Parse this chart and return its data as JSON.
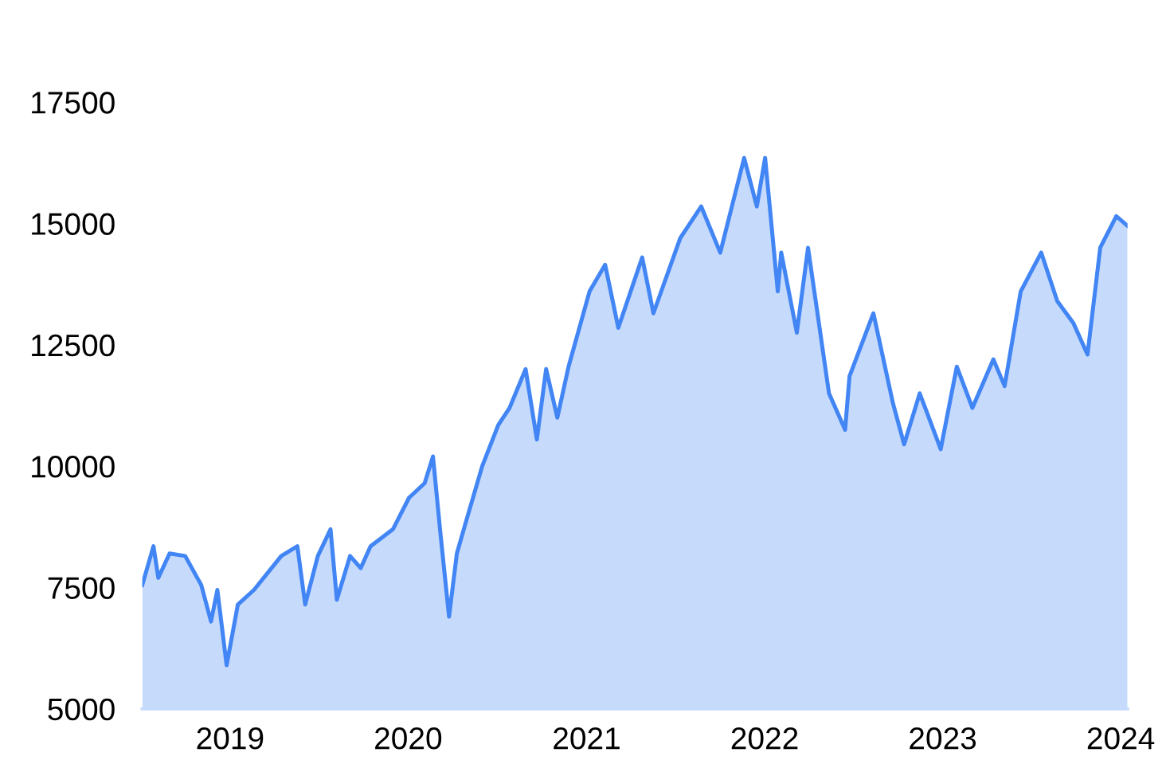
{
  "chart_data": {
    "type": "area",
    "x": [
      "2018-07-05",
      "2018-07-28",
      "2018-08-07",
      "2018-08-30",
      "2018-10-01",
      "2018-11-03",
      "2018-11-23",
      "2018-12-06",
      "2018-12-25",
      "2019-01-17",
      "2019-02-19",
      "2019-04-16",
      "2019-05-19",
      "2019-06-04",
      "2019-06-30",
      "2019-07-26",
      "2019-08-08",
      "2019-09-04",
      "2019-09-26",
      "2019-10-16",
      "2019-12-01",
      "2020-01-03",
      "2020-02-04",
      "2020-02-21",
      "2020-03-08",
      "2020-03-25",
      "2020-04-10",
      "2020-04-30",
      "2020-06-01",
      "2020-07-04",
      "2020-07-27",
      "2020-08-29",
      "2020-09-21",
      "2020-10-10",
      "2020-11-02",
      "2020-11-25",
      "2021-01-07",
      "2021-02-08",
      "2021-03-07",
      "2021-04-25",
      "2021-05-18",
      "2021-07-12",
      "2021-08-24",
      "2021-10-02",
      "2021-11-20",
      "2021-12-16",
      "2022-01-02",
      "2022-01-28",
      "2022-02-04",
      "2022-03-08",
      "2022-03-31",
      "2022-05-13",
      "2022-06-15",
      "2022-06-24",
      "2022-08-12",
      "2022-09-21",
      "2022-10-14",
      "2022-11-15",
      "2022-12-28",
      "2023-01-30",
      "2023-03-03",
      "2023-04-15",
      "2023-05-08",
      "2023-06-10",
      "2023-07-22",
      "2023-08-24",
      "2023-09-26",
      "2023-10-25",
      "2023-11-20",
      "2023-12-23",
      "2024-01-15"
    ],
    "series": [
      {
        "color": "#4285f4",
        "values": [
          7550,
          8350,
          7700,
          8200,
          8150,
          7550,
          6800,
          7450,
          5900,
          7150,
          7450,
          8150,
          8350,
          7150,
          8150,
          8700,
          7250,
          8150,
          7900,
          8350,
          8700,
          9350,
          9650,
          10200,
          8550,
          6900,
          8200,
          8900,
          10000,
          10850,
          11200,
          12000,
          10550,
          12000,
          11000,
          12050,
          13600,
          14150,
          12850,
          14300,
          13150,
          14700,
          15350,
          14400,
          16350,
          15350,
          16350,
          13600,
          14400,
          12750,
          14500,
          11500,
          10750,
          11850,
          13150,
          11300,
          10450,
          11500,
          10350,
          12050,
          11200,
          12200,
          11650,
          13600,
          14400,
          13400,
          12950,
          12300,
          14500,
          15150,
          14950
        ]
      }
    ],
    "ylim": [
      5000,
      17500
    ],
    "xlim": [
      "2018-07-05",
      "2024-01-15"
    ],
    "yticks": [
      5000,
      7500,
      10000,
      12500,
      15000,
      17500
    ],
    "xticks": [
      {
        "value": "2019-01-01",
        "label": "2019"
      },
      {
        "value": "2020-01-01",
        "label": "2020"
      },
      {
        "value": "2021-01-01",
        "label": "2021"
      },
      {
        "value": "2022-01-01",
        "label": "2022"
      },
      {
        "value": "2023-01-01",
        "label": "2023"
      },
      {
        "value": "2024-01-01",
        "label": "2024"
      }
    ]
  }
}
